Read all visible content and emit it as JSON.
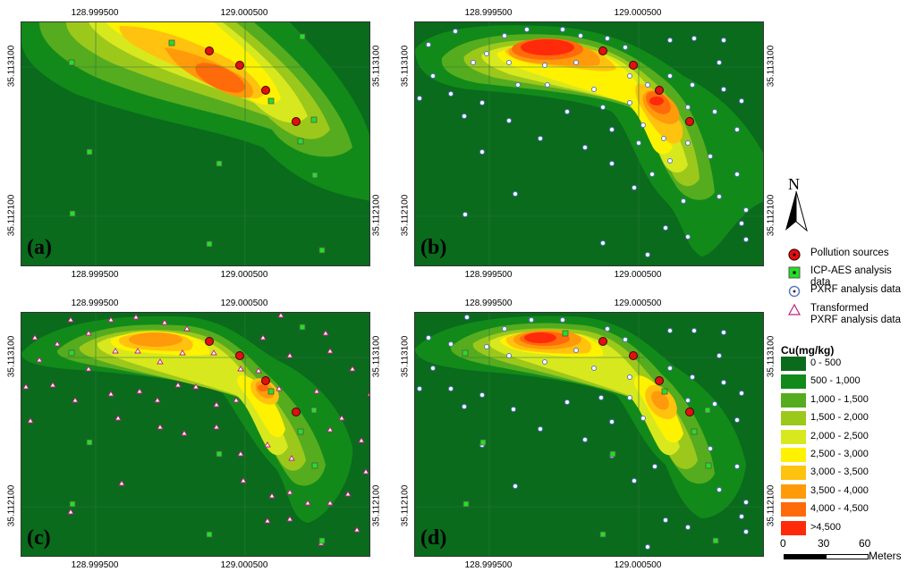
{
  "panels": [
    {
      "id": "a",
      "label": "(a)"
    },
    {
      "id": "b",
      "label": "(b)"
    },
    {
      "id": "c",
      "label": "(c)"
    },
    {
      "id": "d",
      "label": "(d)"
    }
  ],
  "axis": {
    "x_ticks": [
      "128.999500",
      "129.000500"
    ],
    "y_ticks": [
      "35.113100",
      "35.112100"
    ]
  },
  "north_label": "N",
  "legend_symbols": [
    {
      "label": "Pollution sources",
      "icon": "pollution-source-icon"
    },
    {
      "label": "ICP-AES  analysis data",
      "icon": "icp-aes-square-icon"
    },
    {
      "label": "PXRF analysis data",
      "icon": "pxrf-dot-icon"
    },
    {
      "label": "Transformed\nPXRF analysis data",
      "icon": "transformed-triangle-icon"
    }
  ],
  "cu_legend": {
    "title": "Cu(mg/kg)",
    "classes": [
      {
        "label": "0 - 500",
        "color": "#0a6b1c"
      },
      {
        "label": "500 - 1,000",
        "color": "#118a1a"
      },
      {
        "label": "1,000 - 1,500",
        "color": "#55ac1e"
      },
      {
        "label": "1,500 - 2,000",
        "color": "#9cc81c"
      },
      {
        "label": "2,000 - 2,500",
        "color": "#d8e81e"
      },
      {
        "label": "2,500 - 3,000",
        "color": "#fff200"
      },
      {
        "label": "3,000 - 3,500",
        "color": "#ffc20e"
      },
      {
        "label": "3,500 - 4,000",
        "color": "#ff9a0a"
      },
      {
        "label": "4,000 - 4,500",
        "color": "#ff6a0a"
      },
      {
        "label": ">4,500",
        "color": "#ff2a0a"
      }
    ]
  },
  "scale_bar": {
    "labels": [
      "0",
      "30",
      "60"
    ],
    "unit": "Meters"
  }
}
